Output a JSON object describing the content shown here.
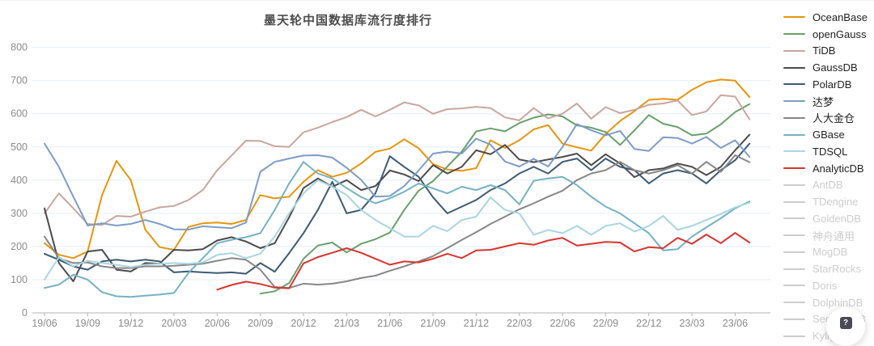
{
  "title": "墨天轮中国数据库流行度排行",
  "help_button": {
    "glyph": "?"
  },
  "chart_data": {
    "type": "line",
    "title": "墨天轮中国数据库流行度排行",
    "xlabel": "",
    "ylabel": "",
    "ylim": [
      0,
      800
    ],
    "y_ticks": [
      0,
      100,
      200,
      300,
      400,
      500,
      600,
      700,
      800
    ],
    "grid": true,
    "legend_position": "right",
    "x_quarter_tick_labels": [
      "19/06",
      "19/09",
      "19/12",
      "20/03",
      "20/06",
      "20/09",
      "20/12",
      "21/03",
      "21/06",
      "21/09",
      "21/12",
      "22/03",
      "22/06",
      "22/09",
      "22/12",
      "23/03",
      "23/06"
    ],
    "months": [
      "19/06",
      "19/07",
      "19/08",
      "19/09",
      "19/10",
      "19/11",
      "19/12",
      "20/01",
      "20/02",
      "20/03",
      "20/04",
      "20/05",
      "20/06",
      "20/07",
      "20/08",
      "20/09",
      "20/10",
      "20/11",
      "20/12",
      "21/01",
      "21/02",
      "21/03",
      "21/04",
      "21/05",
      "21/06",
      "21/07",
      "21/08",
      "21/09",
      "21/10",
      "21/11",
      "21/12",
      "22/01",
      "22/02",
      "22/03",
      "22/04",
      "22/05",
      "22/06",
      "22/07",
      "22/08",
      "22/09",
      "22/10",
      "22/11",
      "22/12",
      "23/01",
      "23/02",
      "23/03",
      "23/04",
      "23/05",
      "23/06",
      "23/07"
    ],
    "series": [
      {
        "id": "oceanbase",
        "name": "OceanBase",
        "color": "#e6950e",
        "values": [
          210,
          175,
          165,
          185,
          355,
          458,
          400,
          251,
          198,
          190,
          259,
          270,
          272,
          268,
          280,
          355,
          345,
          350,
          395,
          430,
          410,
          422,
          450,
          485,
          495,
          523,
          496,
          448,
          432,
          428,
          436,
          520,
          497,
          520,
          553,
          566,
          510,
          499,
          489,
          539,
          578,
          608,
          642,
          645,
          642,
          672,
          695,
          703,
          700,
          650
        ]
      },
      {
        "id": "opengauss",
        "name": "openGauss",
        "color": "#68a06a",
        "values": [
          null,
          null,
          null,
          null,
          null,
          null,
          null,
          null,
          null,
          null,
          null,
          null,
          null,
          null,
          null,
          58,
          65,
          90,
          163,
          203,
          212,
          182,
          208,
          222,
          242,
          310,
          368,
          397,
          441,
          486,
          547,
          556,
          547,
          572,
          588,
          598,
          592,
          565,
          558,
          545,
          506,
          550,
          596,
          570,
          560,
          535,
          540,
          568,
          605,
          629
        ]
      },
      {
        "id": "tidb",
        "name": "TiDB",
        "color": "#c8a69e",
        "values": [
          300,
          360,
          315,
          268,
          265,
          292,
          290,
          305,
          318,
          322,
          340,
          370,
          430,
          474,
          519,
          518,
          502,
          500,
          544,
          558,
          575,
          590,
          612,
          592,
          612,
          634,
          625,
          600,
          614,
          616,
          621,
          617,
          589,
          580,
          617,
          586,
          600,
          631,
          585,
          620,
          602,
          612,
          627,
          631,
          640,
          596,
          607,
          656,
          652,
          583
        ]
      },
      {
        "id": "gaussdb",
        "name": "GaussDB",
        "color": "#4a4a4a",
        "values": [
          315,
          150,
          95,
          185,
          190,
          130,
          125,
          150,
          148,
          190,
          188,
          192,
          218,
          228,
          215,
          195,
          210,
          288,
          376,
          405,
          380,
          400,
          370,
          382,
          429,
          417,
          397,
          445,
          420,
          440,
          490,
          478,
          506,
          462,
          454,
          462,
          470,
          480,
          445,
          478,
          450,
          409,
          430,
          435,
          450,
          440,
          415,
          440,
          490,
          537
        ]
      },
      {
        "id": "polardb",
        "name": "PolarDB",
        "color": "#3c5a75",
        "values": [
          178,
          160,
          140,
          130,
          155,
          160,
          155,
          160,
          155,
          122,
          125,
          122,
          120,
          122,
          118,
          150,
          124,
          180,
          240,
          310,
          395,
          300,
          310,
          360,
          472,
          440,
          410,
          348,
          300,
          320,
          340,
          370,
          390,
          420,
          440,
          420,
          455,
          465,
          430,
          465,
          440,
          430,
          390,
          420,
          430,
          420,
          390,
          430,
          460,
          510
        ]
      },
      {
        "id": "dameng",
        "name": "达梦",
        "color": "#7d9cc7",
        "values": [
          510,
          440,
          350,
          263,
          270,
          263,
          268,
          280,
          268,
          252,
          251,
          261,
          258,
          255,
          272,
          425,
          455,
          465,
          474,
          475,
          468,
          437,
          401,
          350,
          352,
          382,
          429,
          480,
          486,
          480,
          525,
          507,
          456,
          441,
          464,
          441,
          500,
          569,
          550,
          535,
          548,
          494,
          488,
          529,
          527,
          510,
          530,
          497,
          520,
          470
        ]
      },
      {
        "id": "renda-jincang",
        "name": "人大金仓",
        "color": "#878787",
        "values": [
          230,
          165,
          150,
          152,
          140,
          135,
          135,
          140,
          140,
          142,
          145,
          148,
          157,
          165,
          160,
          130,
          78,
          75,
          88,
          85,
          88,
          95,
          105,
          112,
          127,
          140,
          155,
          171,
          195,
          220,
          243,
          268,
          290,
          312,
          330,
          350,
          368,
          400,
          420,
          430,
          455,
          430,
          420,
          430,
          445,
          420,
          455,
          425,
          475,
          454
        ]
      },
      {
        "id": "gbase",
        "name": "GBase",
        "color": "#74b2c4",
        "values": [
          75,
          85,
          115,
          100,
          62,
          50,
          48,
          52,
          55,
          60,
          120,
          165,
          210,
          220,
          228,
          240,
          310,
          390,
          455,
          420,
          405,
          376,
          349,
          330,
          345,
          365,
          390,
          375,
          360,
          380,
          370,
          385,
          370,
          327,
          398,
          405,
          410,
          385,
          350,
          320,
          300,
          270,
          240,
          188,
          192,
          230,
          258,
          285,
          315,
          336
        ]
      },
      {
        "id": "tdsql",
        "name": "TDSQL",
        "color": "#a8d6e0",
        "values": [
          100,
          168,
          140,
          157,
          150,
          145,
          138,
          145,
          148,
          150,
          148,
          152,
          175,
          180,
          165,
          178,
          230,
          300,
          360,
          400,
          380,
          355,
          310,
          280,
          255,
          230,
          230,
          262,
          246,
          280,
          290,
          348,
          310,
          300,
          235,
          250,
          240,
          262,
          235,
          262,
          270,
          245,
          262,
          292,
          250,
          262,
          280,
          298,
          318,
          332
        ]
      },
      {
        "id": "analyticdb",
        "name": "AnalyticDB",
        "color": "#d7342e",
        "values": [
          null,
          null,
          null,
          null,
          null,
          null,
          null,
          null,
          null,
          null,
          null,
          null,
          70,
          84,
          94,
          87,
          76,
          74,
          149,
          168,
          181,
          195,
          181,
          163,
          145,
          155,
          152,
          163,
          178,
          165,
          188,
          190,
          200,
          210,
          205,
          218,
          226,
          203,
          208,
          214,
          212,
          185,
          198,
          195,
          226,
          208,
          236,
          210,
          241,
          212
        ]
      }
    ],
    "legend_items": [
      {
        "id": "oceanbase",
        "label": "OceanBase",
        "color": "#e6950e",
        "active": true
      },
      {
        "id": "opengauss",
        "label": "openGauss",
        "color": "#68a06a",
        "active": true
      },
      {
        "id": "tidb",
        "label": "TiDB",
        "color": "#c8a69e",
        "active": true
      },
      {
        "id": "gaussdb",
        "label": "GaussDB",
        "color": "#4a4a4a",
        "active": true
      },
      {
        "id": "polardb",
        "label": "PolarDB",
        "color": "#3c5a75",
        "active": true
      },
      {
        "id": "dameng",
        "label": "达梦",
        "color": "#7d9cc7",
        "active": true
      },
      {
        "id": "renda-jincang",
        "label": "人大金仓",
        "color": "#878787",
        "active": true
      },
      {
        "id": "gbase",
        "label": "GBase",
        "color": "#74b2c4",
        "active": true
      },
      {
        "id": "tdsql",
        "label": "TDSQL",
        "color": "#a8d6e0",
        "active": true
      },
      {
        "id": "analyticdb",
        "label": "AnalyticDB",
        "color": "#d7342e",
        "active": true
      },
      {
        "id": "antdb",
        "label": "AntDB",
        "color": "#cccccc",
        "active": false
      },
      {
        "id": "tdengine",
        "label": "TDengine",
        "color": "#cccccc",
        "active": false
      },
      {
        "id": "goldendb",
        "label": "GoldenDB",
        "color": "#cccccc",
        "active": false
      },
      {
        "id": "shenzhou-tongyong",
        "label": "神舟通用",
        "color": "#cccccc",
        "active": false
      },
      {
        "id": "mogdb",
        "label": "MogDB",
        "color": "#cccccc",
        "active": false
      },
      {
        "id": "starrocks",
        "label": "StarRocks",
        "color": "#cccccc",
        "active": false
      },
      {
        "id": "doris",
        "label": "Doris",
        "color": "#cccccc",
        "active": false
      },
      {
        "id": "dolphindb",
        "label": "DolphinDB",
        "color": "#cccccc",
        "active": false
      },
      {
        "id": "sequoiadb",
        "label": "SequoiaDB",
        "color": "#cccccc",
        "active": false
      },
      {
        "id": "kyligence",
        "label": "Kyligence",
        "color": "#cccccc",
        "active": false
      }
    ]
  }
}
